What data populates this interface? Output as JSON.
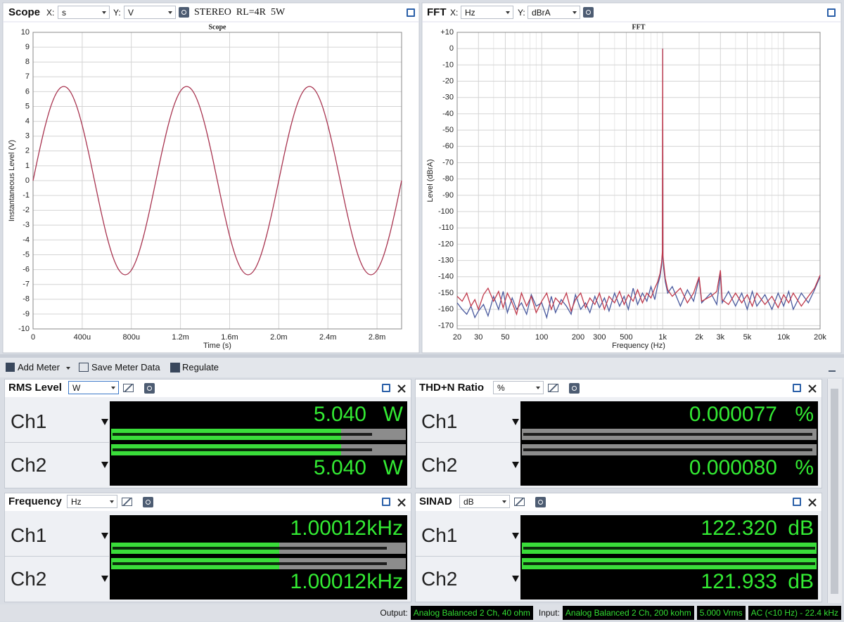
{
  "panels": [
    {
      "title": "Scope",
      "x_label": "X:",
      "x_unit": "s",
      "y_label": "Y:",
      "y_unit": "V",
      "note": "STEREO  RL=4R  5W"
    },
    {
      "title": "FFT",
      "x_label": "X:",
      "x_unit": "Hz",
      "y_label": "Y:",
      "y_unit": "dBrA"
    }
  ],
  "chart_data": [
    {
      "type": "line",
      "title": "Scope",
      "x_label": "Time (s)",
      "y_label": "Instantaneous Level (V)",
      "x": [
        0,
        5e-05,
        0.0001,
        0.00015,
        0.0002,
        0.00025,
        0.0003,
        0.00035,
        0.0004,
        0.00045,
        0.0005,
        0.00055,
        0.0006,
        0.00065,
        0.0007,
        0.00075,
        0.0008,
        0.00085,
        0.0009,
        0.00095,
        0.001,
        0.00105,
        0.0011,
        0.00115,
        0.0012,
        0.00125,
        0.0013,
        0.00135,
        0.0014,
        0.00145,
        0.0015,
        0.00155,
        0.0016,
        0.00165,
        0.0017,
        0.00175,
        0.0018,
        0.00185,
        0.0019,
        0.00195,
        0.002,
        0.00205,
        0.0021,
        0.00215,
        0.0022,
        0.00225,
        0.0023,
        0.00235,
        0.0024,
        0.00245,
        0.0025,
        0.00255,
        0.0026,
        0.00265,
        0.0027,
        0.00275,
        0.0028,
        0.00285,
        0.0029,
        0.00295,
        0.003
      ],
      "values": [
        0,
        1.96,
        3.73,
        5.14,
        6.04,
        6.35,
        6.04,
        5.14,
        3.73,
        1.96,
        0,
        -1.96,
        -3.73,
        -5.14,
        -6.04,
        -6.35,
        -6.04,
        -5.14,
        -3.73,
        -1.96,
        0,
        1.96,
        3.73,
        5.14,
        6.04,
        6.35,
        6.04,
        5.14,
        3.73,
        1.96,
        0,
        -1.96,
        -3.73,
        -5.14,
        -6.04,
        -6.35,
        -6.04,
        -5.14,
        -3.73,
        -1.96,
        0,
        1.96,
        3.73,
        5.14,
        6.04,
        6.35,
        6.04,
        5.14,
        3.73,
        1.96,
        0,
        -1.96,
        -3.73,
        -5.14,
        -6.04,
        -6.35,
        -6.04,
        -5.14,
        -3.73,
        -1.96,
        0
      ],
      "color": "#a8334f",
      "xlim": [
        0,
        0.003
      ],
      "ylim": [
        -10,
        10
      ],
      "xticks": [
        0,
        {
          "value": 0.0004,
          "label": "400u"
        },
        {
          "value": 0.0008,
          "label": "800u"
        },
        {
          "value": 0.0012,
          "label": "1.2m"
        },
        {
          "value": 0.0016,
          "label": "1.6m"
        },
        {
          "value": 0.002,
          "label": "2.0m"
        },
        {
          "value": 0.0024,
          "label": "2.4m"
        },
        {
          "value": 0.0028,
          "label": "2.8m"
        }
      ],
      "yticks": [
        -10,
        -9,
        -8,
        -7,
        -6,
        -5,
        -4,
        -3,
        -2,
        -1,
        0,
        1,
        2,
        3,
        4,
        5,
        6,
        7,
        8,
        9,
        10
      ],
      "grid": true
    },
    {
      "type": "line",
      "log_x": true,
      "title": "FFT",
      "x_label": "Frequency (Hz)",
      "y_label": "Level (dBrA)",
      "x": [
        20,
        22,
        24,
        26,
        28,
        30,
        33,
        36,
        40,
        44,
        48,
        52,
        57,
        62,
        68,
        75,
        82,
        90,
        100,
        110,
        120,
        130,
        145,
        160,
        175,
        190,
        210,
        230,
        250,
        275,
        300,
        330,
        360,
        400,
        440,
        480,
        520,
        570,
        620,
        680,
        740,
        800,
        860,
        910,
        950,
        980,
        995,
        1000,
        1005,
        1020,
        1050,
        1100,
        1200,
        1400,
        1600,
        1800,
        2000,
        2100,
        2500,
        2800,
        3000,
        3100,
        3500,
        4000,
        4500,
        5000,
        5500,
        6000,
        7000,
        8000,
        9000,
        10000,
        11000,
        12000,
        14000,
        16000,
        18000,
        20000
      ],
      "series": [
        {
          "color": "#4a5a9e",
          "values": [
            -156,
            -160,
            -163,
            -158,
            -165,
            -161,
            -157,
            -164,
            -152,
            -160,
            -149,
            -162,
            -153,
            -160,
            -156,
            -163,
            -151,
            -158,
            -156,
            -165,
            -152,
            -162,
            -154,
            -158,
            -163,
            -151,
            -160,
            -156,
            -162,
            -152,
            -159,
            -153,
            -161,
            -150,
            -158,
            -152,
            -160,
            -147,
            -157,
            -150,
            -155,
            -146,
            -154,
            -145,
            -140,
            -133,
            -125,
            0,
            -128,
            -135,
            -143,
            -150,
            -146,
            -158,
            -148,
            -155,
            -141,
            -156,
            -150,
            -157,
            -138,
            -156,
            -149,
            -158,
            -150,
            -160,
            -149,
            -158,
            -151,
            -160,
            -150,
            -158,
            -149,
            -160,
            -150,
            -156,
            -148,
            -140
          ]
        },
        {
          "color": "#c0394b",
          "values": [
            -152,
            -155,
            -150,
            -158,
            -154,
            -160,
            -151,
            -147,
            -155,
            -149,
            -159,
            -150,
            -156,
            -163,
            -150,
            -158,
            -152,
            -162,
            -155,
            -150,
            -160,
            -153,
            -157,
            -150,
            -161,
            -154,
            -150,
            -159,
            -153,
            -157,
            -150,
            -160,
            -152,
            -156,
            -149,
            -157,
            -151,
            -155,
            -148,
            -156,
            -150,
            -153,
            -147,
            -143,
            -138,
            -131,
            -124,
            0,
            -127,
            -132,
            -141,
            -148,
            -152,
            -147,
            -156,
            -150,
            -140,
            -155,
            -152,
            -149,
            -136,
            -154,
            -157,
            -150,
            -156,
            -151,
            -158,
            -150,
            -157,
            -152,
            -159,
            -151,
            -156,
            -150,
            -158,
            -152,
            -147,
            -139
          ]
        }
      ],
      "xlim": [
        20,
        20000
      ],
      "ylim": [
        -172,
        10
      ],
      "xticks": [
        20,
        30,
        50,
        100,
        200,
        300,
        500,
        {
          "value": 1000,
          "label": "1k"
        },
        {
          "value": 2000,
          "label": "2k"
        },
        {
          "value": 3000,
          "label": "3k"
        },
        {
          "value": 5000,
          "label": "5k"
        },
        {
          "value": 10000,
          "label": "10k"
        },
        {
          "value": 20000,
          "label": "20k"
        }
      ],
      "xminor": [
        40,
        60,
        70,
        80,
        90,
        400,
        600,
        700,
        800,
        900,
        4000,
        6000,
        7000,
        8000,
        9000
      ],
      "yticks": [
        {
          "value": 10,
          "label": "+10"
        },
        0,
        -10,
        -20,
        -30,
        -40,
        -50,
        -60,
        -70,
        -80,
        -90,
        -100,
        -110,
        -120,
        -130,
        -140,
        -150,
        -160,
        -170
      ],
      "grid": true
    }
  ],
  "toolbar": {
    "buttons": [
      "Add Meter",
      "Save Meter Data",
      "Regulate"
    ]
  },
  "meters": [
    {
      "title": "RMS Level",
      "unit_select": "W",
      "channels": [
        {
          "name": "Ch1",
          "reading": "5.040",
          "unit": "W"
        },
        {
          "name": "Ch2",
          "reading": "5.040",
          "unit": "W"
        }
      ]
    },
    {
      "title": "THD+N Ratio",
      "unit_select": "%",
      "channels": [
        {
          "name": "Ch1",
          "reading": "0.000077",
          "unit": "%"
        },
        {
          "name": "Ch2",
          "reading": "0.000080",
          "unit": "%"
        }
      ]
    },
    {
      "title": "Frequency",
      "unit_select": "Hz",
      "channels": [
        {
          "name": "Ch1",
          "reading": "1.00012",
          "unit": "kHz"
        },
        {
          "name": "Ch2",
          "reading": "1.00012",
          "unit": "kHz"
        }
      ]
    },
    {
      "title": "SINAD",
      "unit_select": "dB",
      "channels": [
        {
          "name": "Ch1",
          "reading": "122.320",
          "unit": "dB"
        },
        {
          "name": "Ch2",
          "reading": "121.933",
          "unit": "dB"
        }
      ]
    }
  ],
  "status_bar": {
    "output_label": "Output:",
    "output": "Analog Balanced 2 Ch, 40 ohm",
    "input_label": "Input:",
    "input": "Analog Balanced 2 Ch, 200 kohm",
    "level": "5.000 Vrms",
    "filter": "AC (<10 Hz) - 22.4 kHz"
  }
}
